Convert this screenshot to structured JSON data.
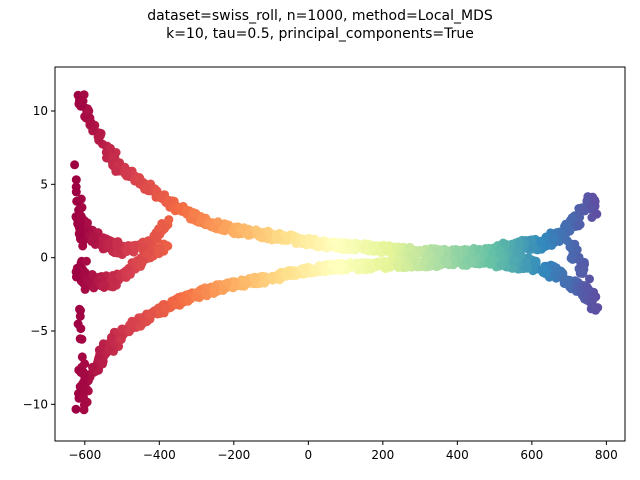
{
  "chart_data": {
    "type": "scatter",
    "title_line1": "dataset=swiss_roll, n=1000, method=Local_MDS",
    "title_line2": "k=10, tau=0.5, principal_components=True",
    "xlabel": "",
    "ylabel": "",
    "xlim": [
      -680,
      850
    ],
    "ylim": [
      -12.5,
      13
    ],
    "xticks": [
      -600,
      -400,
      -200,
      0,
      200,
      400,
      600,
      800
    ],
    "yticks": [
      -10,
      -5,
      0,
      5,
      10
    ],
    "grid": false,
    "colormap": "Spectral",
    "x_domain": [
      -620,
      770
    ],
    "branches": [
      {
        "x": [
          -620,
          -600,
          -570,
          -540,
          -500,
          -450,
          -400,
          -350,
          -300,
          -250,
          -200,
          -150,
          -100,
          -50,
          0,
          50,
          100,
          150,
          200,
          300,
          400,
          500,
          600,
          660,
          700,
          730,
          750,
          760,
          770
        ],
        "y": [
          11.5,
          10.0,
          8.5,
          7.2,
          6.0,
          5.2,
          4.2,
          3.4,
          2.7,
          2.2,
          1.9,
          1.7,
          1.5,
          1.3,
          1.1,
          0.9,
          0.8,
          0.7,
          0.6,
          0.4,
          0.3,
          0.5,
          0.8,
          1.3,
          2.0,
          2.8,
          3.5,
          4.0,
          3.0
        ]
      },
      {
        "x": [
          -620,
          -600,
          -570,
          -540,
          -500,
          -450,
          -400,
          -350,
          -300,
          -250,
          -200,
          -150,
          -100,
          -50,
          0,
          50,
          100,
          150,
          200,
          300,
          400,
          500,
          600,
          660,
          700,
          730,
          750,
          760,
          770
        ],
        "y": [
          -10.0,
          -9.0,
          -7.5,
          -6.2,
          -5.2,
          -4.3,
          -3.6,
          -3.0,
          -2.5,
          -2.1,
          -1.8,
          -1.6,
          -1.4,
          -1.1,
          -0.9,
          -0.7,
          -0.6,
          -0.6,
          -0.5,
          -0.4,
          -0.3,
          -0.2,
          -0.4,
          -1.0,
          -1.6,
          -2.2,
          -2.8,
          -3.2,
          -2.5
        ]
      },
      {
        "x": [
          -620,
          -590,
          -560,
          -530,
          -500,
          -470,
          -440,
          -410,
          -380
        ],
        "y": [
          2.5,
          1.8,
          1.2,
          0.8,
          0.6,
          0.6,
          0.8,
          1.4,
          2.5
        ]
      },
      {
        "x": [
          -620,
          -590,
          -560,
          -530,
          -500,
          -470,
          -440,
          -410,
          -380
        ],
        "y": [
          -1.0,
          -1.5,
          -1.8,
          -1.6,
          -1.2,
          -0.6,
          0.0,
          0.4,
          0.8
        ]
      },
      {
        "x": [
          -620,
          -615,
          -610,
          -605,
          -600
        ],
        "y": [
          6.0,
          4.0,
          2.0,
          0.0,
          -2.0
        ]
      },
      {
        "x": [
          -620,
          -615,
          -610,
          -605,
          -600
        ],
        "y": [
          -3.0,
          -5.0,
          -7.0,
          -9.0,
          -11.0
        ]
      },
      {
        "x": [
          700,
          720,
          740,
          750,
          760,
          770
        ],
        "y": [
          1.0,
          0.0,
          -1.0,
          -2.0,
          -2.8,
          -3.3
        ]
      }
    ]
  }
}
